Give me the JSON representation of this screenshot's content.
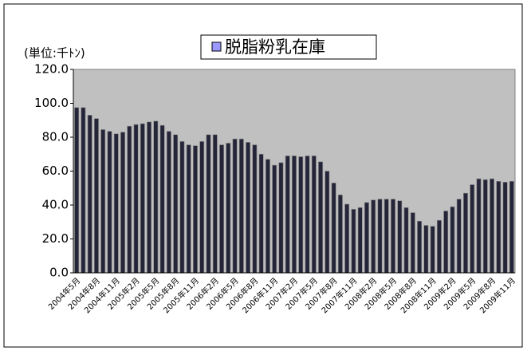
{
  "chart_data": {
    "type": "bar",
    "unit_label": "(単位:千ﾄﾝ)",
    "legend": "top",
    "categories": [
      "2004年5月",
      null,
      null,
      "2004年8月",
      null,
      null,
      "2004年11月",
      null,
      null,
      "2005年2月",
      null,
      null,
      "2005年5月",
      null,
      null,
      "2005年8月",
      null,
      null,
      "2005年11月",
      null,
      null,
      "2006年2月",
      null,
      null,
      "2006年5月",
      null,
      null,
      "2006年8月",
      null,
      null,
      "2006年11月",
      null,
      null,
      "2007年2月",
      null,
      null,
      "2007年5月",
      null,
      null,
      "2007年8月",
      null,
      null,
      "2007年11月",
      null,
      null,
      "2008年2月",
      null,
      null,
      "2008年5月",
      null,
      null,
      "2008年8月",
      null,
      null,
      "2008年11月",
      null,
      null,
      "2009年2月",
      null,
      null,
      "2009年5月",
      null,
      null,
      "2009年8月",
      null,
      null,
      "2009年11月"
    ],
    "series": [
      {
        "name": "脱脂粉乳在庫",
        "color": "#25253a",
        "values": [
          97.5,
          97.5,
          93,
          91,
          84.5,
          83.5,
          82,
          83,
          86.5,
          87.5,
          88,
          89,
          89.5,
          87,
          83.5,
          81.5,
          77.5,
          75.5,
          75,
          77.5,
          81.5,
          81.5,
          75.5,
          76.5,
          79,
          79,
          77,
          75.5,
          70,
          67,
          63.5,
          65,
          69,
          69,
          68.5,
          69,
          69,
          65.5,
          60,
          53,
          46,
          40.5,
          37.5,
          38.5,
          41.5,
          43,
          43.5,
          43.5,
          43.5,
          42.5,
          38.5,
          35.5,
          30.5,
          28,
          27.5,
          31,
          36.5,
          39,
          43.5,
          47,
          52,
          55.5,
          55,
          55.5,
          54,
          53.5,
          54
        ]
      }
    ],
    "ylim": [
      0,
      120
    ],
    "yticks": [
      {
        "value": 0,
        "label": "0.0"
      },
      {
        "value": 20,
        "label": "20.0"
      },
      {
        "value": 40,
        "label": "40.0"
      },
      {
        "value": 60,
        "label": "60.0"
      },
      {
        "value": 80,
        "label": "80.0"
      },
      {
        "value": 100,
        "label": "100.0"
      },
      {
        "value": 120,
        "label": "120.0"
      }
    ]
  }
}
